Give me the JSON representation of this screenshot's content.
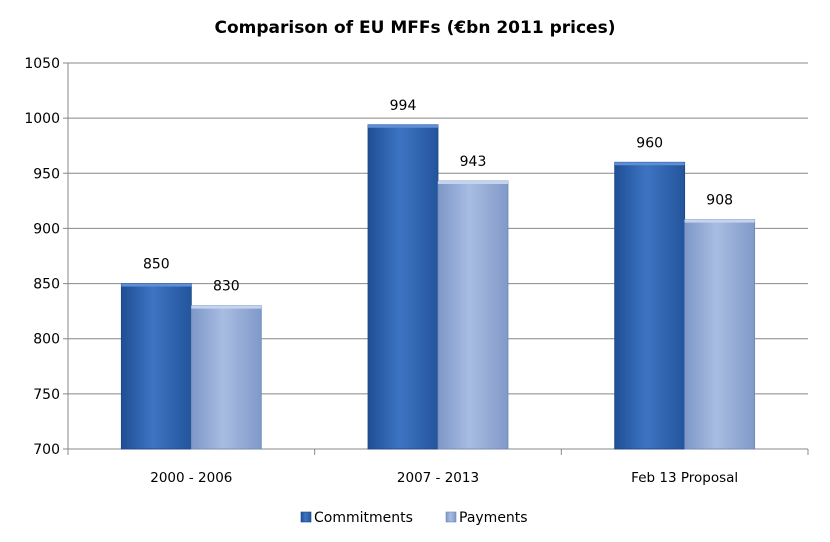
{
  "chart_data": {
    "type": "bar",
    "title": "Comparison of EU MFFs (€bn 2011 prices)",
    "xlabel": "",
    "ylabel": "",
    "categories": [
      "2000 - 2006",
      "2007 - 2013",
      "Feb 13 Proposal"
    ],
    "series": [
      {
        "name": "Commitments",
        "values": [
          850,
          994,
          960
        ],
        "color": "#2f64ad"
      },
      {
        "name": "Payments",
        "values": [
          830,
          943,
          908
        ],
        "color": "#8fa8d6"
      }
    ],
    "ylim": [
      700,
      1050
    ],
    "yticks": [
      700,
      750,
      800,
      850,
      900,
      950,
      1000,
      1050
    ],
    "grid": true,
    "legend": "bottom",
    "data_labels": true
  }
}
